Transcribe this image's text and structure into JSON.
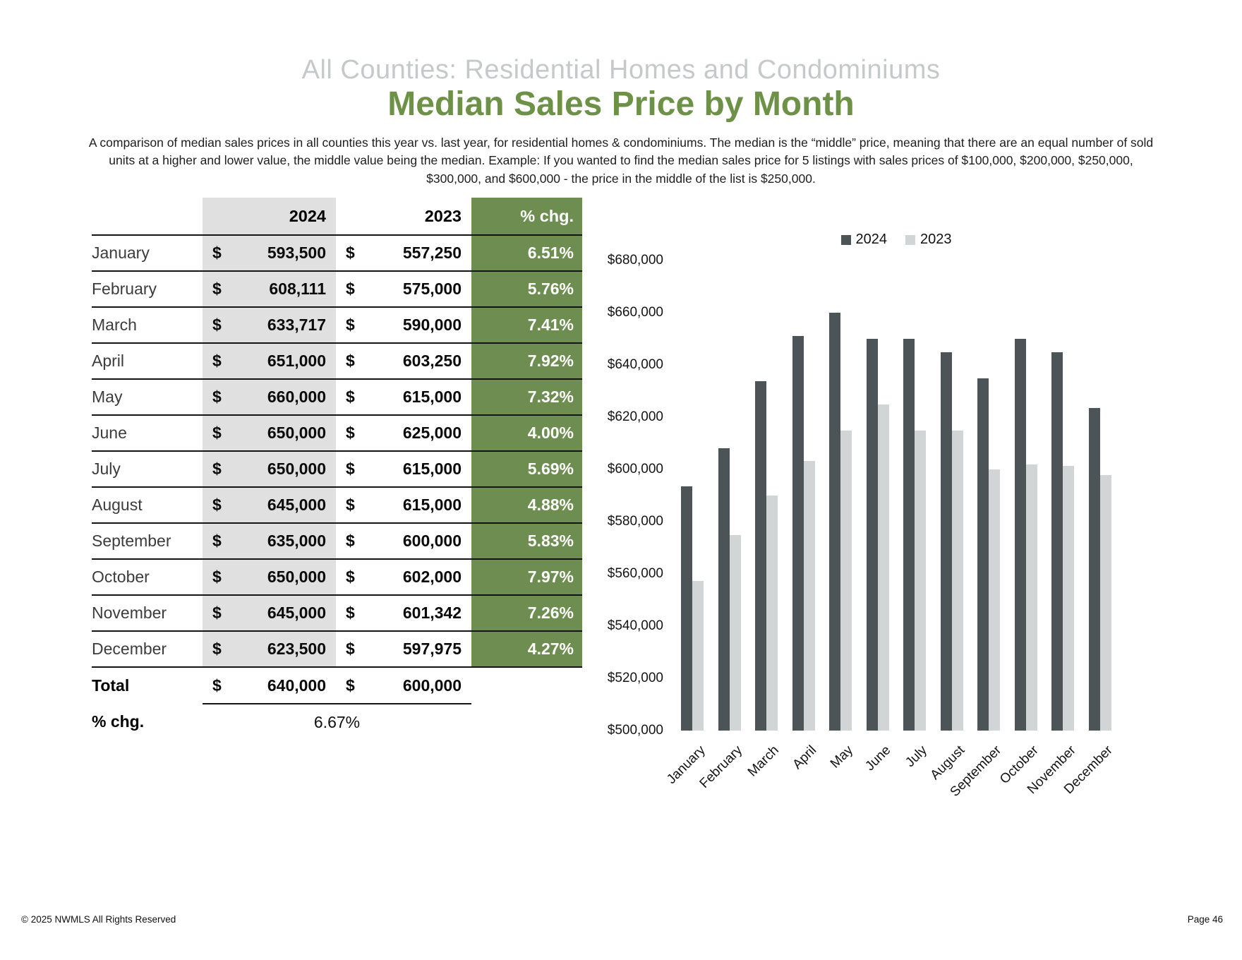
{
  "header": {
    "subtitle": "All Counties: Residential Homes and Condominiums",
    "title": "Median Sales Price by Month",
    "description": "A comparison of median sales prices in all counties this year vs. last year, for residential homes & condominiums. The median is the “middle” price, meaning that there are an equal number of sold units at a higher and lower value, the middle value being the median. Example: If you wanted to find the median sales price for 5 listings with sales prices of $100,000, $200,000, $250,000, $300,000, and $600,000 - the price in the middle of the list is $250,000."
  },
  "table": {
    "columns": [
      "2024",
      "2023",
      "% chg."
    ],
    "currency_symbol": "$",
    "rows": [
      {
        "month": "January",
        "y2024": "593,500",
        "y2023": "557,250",
        "chg": "6.51%"
      },
      {
        "month": "February",
        "y2024": "608,111",
        "y2023": "575,000",
        "chg": "5.76%"
      },
      {
        "month": "March",
        "y2024": "633,717",
        "y2023": "590,000",
        "chg": "7.41%"
      },
      {
        "month": "April",
        "y2024": "651,000",
        "y2023": "603,250",
        "chg": "7.92%"
      },
      {
        "month": "May",
        "y2024": "660,000",
        "y2023": "615,000",
        "chg": "7.32%"
      },
      {
        "month": "June",
        "y2024": "650,000",
        "y2023": "625,000",
        "chg": "4.00%"
      },
      {
        "month": "July",
        "y2024": "650,000",
        "y2023": "615,000",
        "chg": "5.69%"
      },
      {
        "month": "August",
        "y2024": "645,000",
        "y2023": "615,000",
        "chg": "4.88%"
      },
      {
        "month": "September",
        "y2024": "635,000",
        "y2023": "600,000",
        "chg": "5.83%"
      },
      {
        "month": "October",
        "y2024": "650,000",
        "y2023": "602,000",
        "chg": "7.97%"
      },
      {
        "month": "November",
        "y2024": "645,000",
        "y2023": "601,342",
        "chg": "7.26%"
      },
      {
        "month": "December",
        "y2024": "623,500",
        "y2023": "597,975",
        "chg": "4.27%"
      }
    ],
    "total": {
      "label": "Total",
      "y2024": "640,000",
      "y2023": "600,000"
    },
    "total_chg": {
      "label": "% chg.",
      "value": "6.67%"
    }
  },
  "chart_data": {
    "type": "bar",
    "title": "",
    "xlabel": "",
    "ylabel": "",
    "categories": [
      "January",
      "February",
      "March",
      "April",
      "May",
      "June",
      "July",
      "August",
      "September",
      "October",
      "November",
      "December"
    ],
    "series": [
      {
        "name": "2024",
        "color": "#4c5457",
        "values": [
          593500,
          608111,
          633717,
          651000,
          660000,
          650000,
          650000,
          645000,
          635000,
          650000,
          645000,
          623500
        ]
      },
      {
        "name": "2023",
        "color": "#d1d5d6",
        "values": [
          557250,
          575000,
          590000,
          603250,
          615000,
          625000,
          615000,
          615000,
          600000,
          602000,
          601342,
          597975
        ]
      }
    ],
    "ylim": [
      500000,
      680000
    ],
    "ytick_step": 20000,
    "ytick_prefix": "$",
    "grid": false,
    "legend_position": "top"
  },
  "colors": {
    "accent_green": "#6e8e51",
    "title_green": "#6d9147",
    "table_gray": "#e0e0e0",
    "bar_2024": "#4c5457",
    "bar_2023": "#d1d5d6",
    "subtitle_gray": "#c5c9ca"
  },
  "footer": {
    "left": "© 2025 NWMLS All Rights Reserved",
    "right": "Page 46"
  }
}
